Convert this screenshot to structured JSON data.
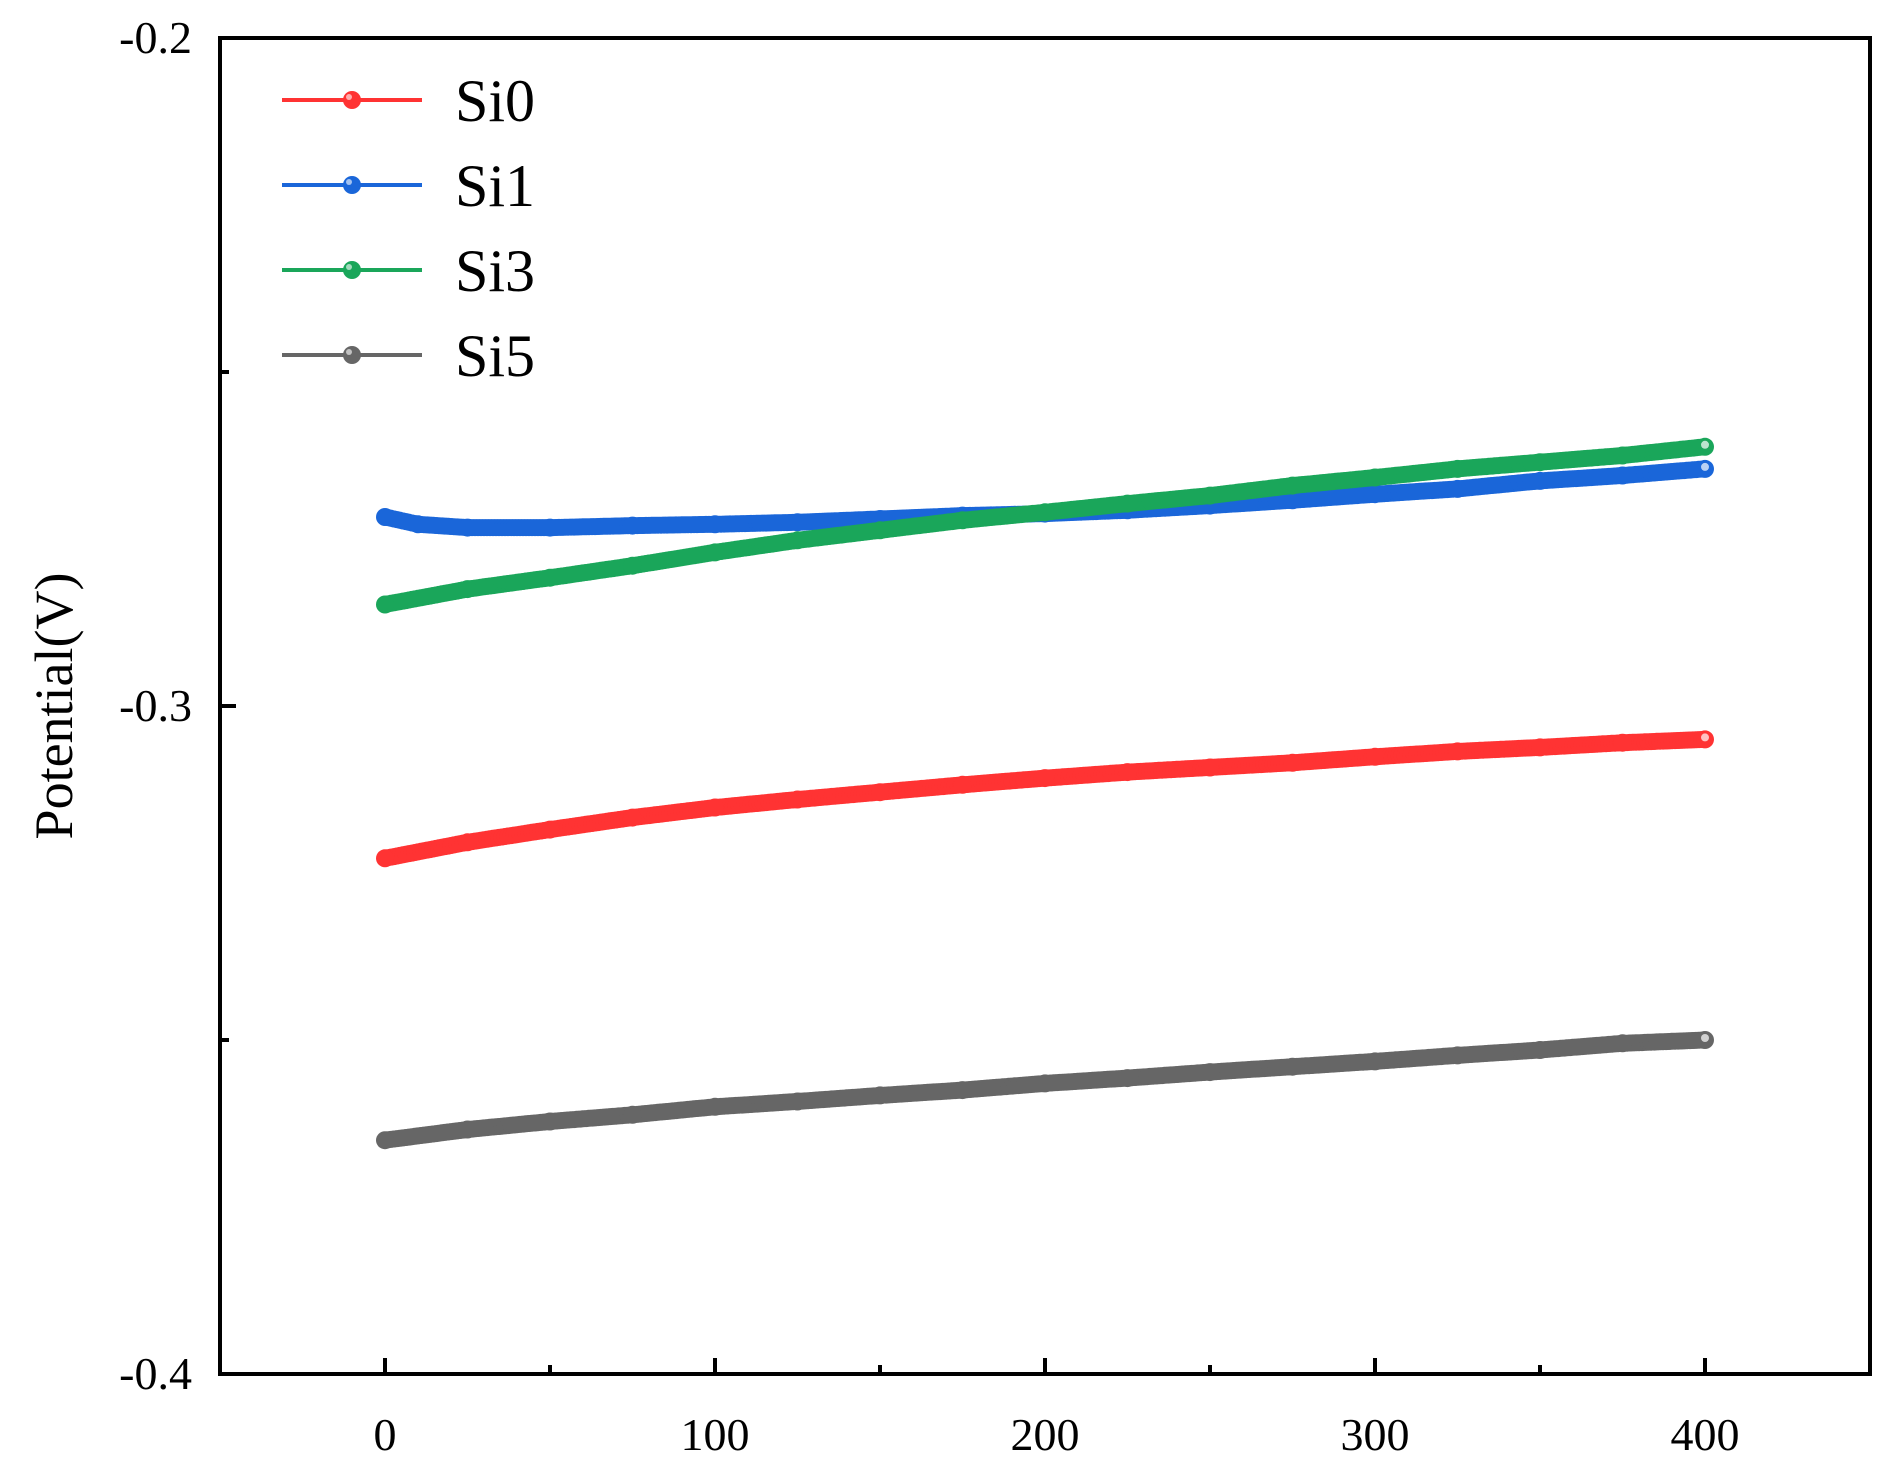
{
  "chart_data": {
    "type": "line",
    "title": "",
    "xlabel": "",
    "ylabel": "Potential(V)",
    "xlim": [
      -50,
      450
    ],
    "ylim": [
      -0.4,
      -0.2
    ],
    "xticks": [
      0,
      100,
      200,
      300,
      400
    ],
    "xtick_labels": [
      "0",
      "100",
      "200",
      "300",
      "400"
    ],
    "yticks": [
      -0.4,
      -0.3,
      -0.2
    ],
    "ytick_labels": [
      "-0.4",
      "-0.3",
      "-0.2"
    ],
    "x_minor_ticks": [
      50,
      150,
      250,
      350
    ],
    "y_minor_ticks": [
      -0.35,
      -0.25
    ],
    "grid": false,
    "legend_position": "top-left",
    "series": [
      {
        "name": "Si0",
        "color": "#ff3333",
        "x": [
          0,
          25,
          50,
          75,
          100,
          125,
          150,
          175,
          200,
          225,
          250,
          275,
          300,
          325,
          350,
          375,
          400
        ],
        "y": [
          -0.3228,
          -0.3204,
          -0.3185,
          -0.3167,
          -0.3152,
          -0.314,
          -0.3129,
          -0.3118,
          -0.3108,
          -0.3099,
          -0.3092,
          -0.3085,
          -0.3076,
          -0.3068,
          -0.3062,
          -0.3055,
          -0.305
        ]
      },
      {
        "name": "Si1",
        "color": "#1a66d9",
        "x": [
          0,
          10,
          25,
          50,
          75,
          100,
          125,
          150,
          175,
          200,
          225,
          250,
          275,
          300,
          325,
          350,
          375,
          400
        ],
        "y": [
          -0.2717,
          -0.2728,
          -0.2733,
          -0.2733,
          -0.273,
          -0.2728,
          -0.2725,
          -0.272,
          -0.2715,
          -0.2712,
          -0.2707,
          -0.27,
          -0.2692,
          -0.2683,
          -0.2675,
          -0.2663,
          -0.2655,
          -0.2645
        ]
      },
      {
        "name": "Si3",
        "color": "#1aa65a",
        "x": [
          0,
          25,
          50,
          75,
          100,
          125,
          150,
          175,
          200,
          225,
          250,
          275,
          300,
          325,
          350,
          375,
          400
        ],
        "y": [
          -0.2848,
          -0.2825,
          -0.2808,
          -0.279,
          -0.277,
          -0.2752,
          -0.2737,
          -0.2722,
          -0.271,
          -0.2697,
          -0.2685,
          -0.267,
          -0.2658,
          -0.2645,
          -0.2635,
          -0.2625,
          -0.2612
        ]
      },
      {
        "name": "Si5",
        "color": "#666666",
        "x": [
          0,
          25,
          50,
          75,
          100,
          125,
          150,
          175,
          200,
          225,
          250,
          275,
          300,
          325,
          350,
          375,
          400
        ],
        "y": [
          -0.365,
          -0.3634,
          -0.3622,
          -0.3612,
          -0.36,
          -0.3592,
          -0.3583,
          -0.3575,
          -0.3565,
          -0.3557,
          -0.3548,
          -0.354,
          -0.3532,
          -0.3523,
          -0.3515,
          -0.3505,
          -0.35
        ]
      }
    ]
  }
}
